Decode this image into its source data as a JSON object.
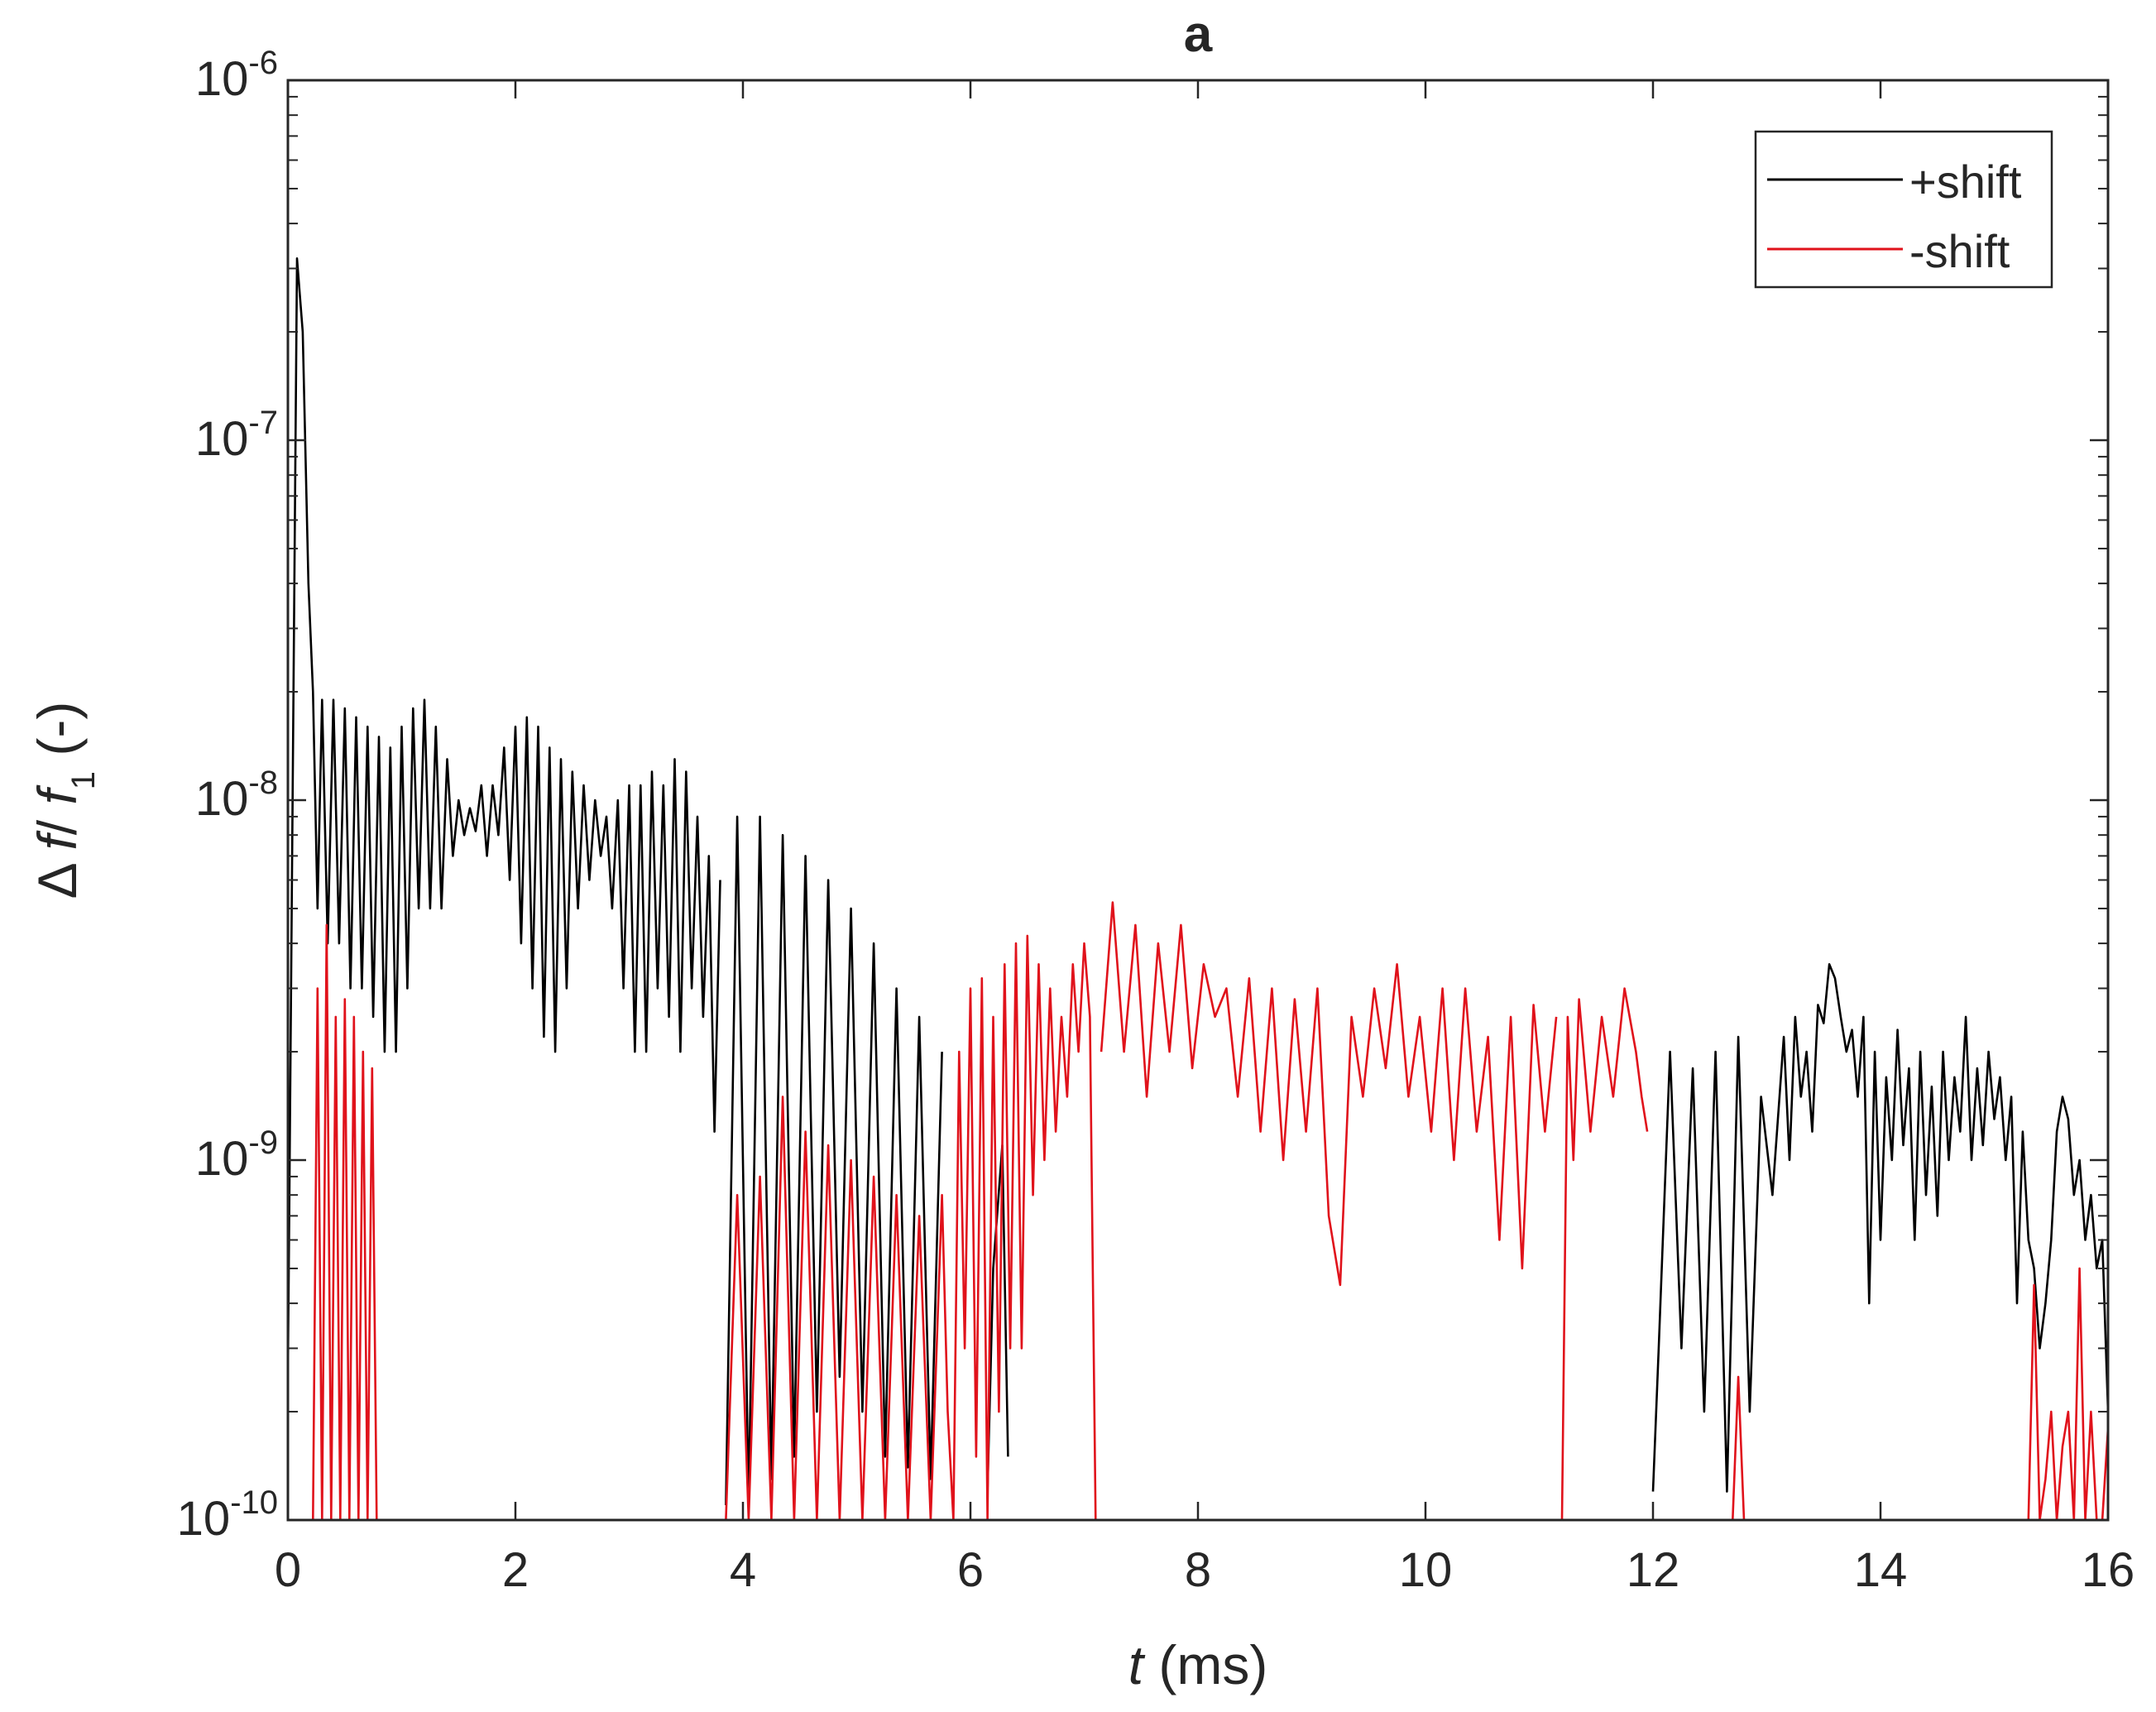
{
  "chart_data": {
    "type": "line",
    "title": "a",
    "xlabel": {
      "var": "t",
      "unit": " (ms)"
    },
    "ylabel": {
      "delta": "Δ",
      "f": "f",
      "slash": "/ ",
      "f1": "f",
      "sub": "1",
      "unit": " (-)"
    },
    "xlim": [
      0,
      16
    ],
    "ylim": [
      1e-10,
      1e-06
    ],
    "yscale": "log",
    "x_ticks": [
      0,
      2,
      4,
      6,
      8,
      10,
      12,
      14,
      16
    ],
    "x_tick_labels": [
      "0",
      "2",
      "4",
      "6",
      "8",
      "10",
      "12",
      "14",
      "16"
    ],
    "y_ticks": [
      1e-10,
      1e-09,
      1e-08,
      1e-07,
      1e-06
    ],
    "y_tick_labels": [
      {
        "base": "10",
        "exp": "-10"
      },
      {
        "base": "10",
        "exp": "-9"
      },
      {
        "base": "10",
        "exp": "-8"
      },
      {
        "base": "10",
        "exp": "-7"
      },
      {
        "base": "10",
        "exp": "-6"
      }
    ],
    "legend": {
      "position": "top-right"
    },
    "series": [
      {
        "name": "+shift",
        "color": "#000000",
        "segments": [
          {
            "x": [
              0.0,
              0.08,
              0.13,
              0.18,
              0.22,
              0.26,
              0.3,
              0.35,
              0.4,
              0.45,
              0.5,
              0.55,
              0.6,
              0.65,
              0.7,
              0.75,
              0.8,
              0.85,
              0.9,
              0.95,
              1.0,
              1.05,
              1.1,
              1.15,
              1.2,
              1.25,
              1.3,
              1.35,
              1.4,
              1.45,
              1.5,
              1.55,
              1.6,
              1.65,
              1.7,
              1.75,
              1.8,
              1.85,
              1.9,
              1.95,
              2.0,
              2.05,
              2.1,
              2.15,
              2.2,
              2.25,
              2.3,
              2.35,
              2.4,
              2.45,
              2.5,
              2.55,
              2.6,
              2.65,
              2.7,
              2.75,
              2.8,
              2.85,
              2.9,
              2.95,
              3.0,
              3.05,
              3.1,
              3.15,
              3.2,
              3.25,
              3.3,
              3.35,
              3.4,
              3.45,
              3.5,
              3.55,
              3.6,
              3.65,
              3.7,
              3.75,
              3.8
            ],
            "y": [
              2.5e-10,
              3.2e-07,
              2e-07,
              4e-08,
              2e-08,
              5e-09,
              1.9e-08,
              4e-09,
              1.9e-08,
              4e-09,
              1.8e-08,
              3e-09,
              1.7e-08,
              3e-09,
              1.6e-08,
              2.5e-09,
              1.5e-08,
              2e-09,
              1.4e-08,
              2e-09,
              1.6e-08,
              3e-09,
              1.8e-08,
              5e-09,
              1.9e-08,
              5e-09,
              1.6e-08,
              5e-09,
              1.3e-08,
              7e-09,
              1e-08,
              8e-09,
              9.5e-09,
              8.2e-09,
              1.1e-08,
              7e-09,
              1.1e-08,
              8e-09,
              1.4e-08,
              6e-09,
              1.6e-08,
              4e-09,
              1.7e-08,
              3e-09,
              1.6e-08,
              2.2e-09,
              1.4e-08,
              2e-09,
              1.3e-08,
              3e-09,
              1.2e-08,
              5e-09,
              1.1e-08,
              6e-09,
              1e-08,
              7e-09,
              9e-09,
              5e-09,
              1e-08,
              3e-09,
              1.1e-08,
              2e-09,
              1.1e-08,
              2e-09,
              1.2e-08,
              3e-09,
              1.1e-08,
              2.5e-09,
              1.3e-08,
              2e-09,
              1.2e-08,
              3e-09,
              9e-09,
              2.5e-09,
              7e-09,
              1.2e-09,
              6e-09
            ]
          },
          {
            "x": [
              3.85,
              3.95,
              4.05,
              4.15,
              4.25,
              4.35,
              4.45,
              4.55,
              4.65,
              4.75,
              4.85,
              4.95,
              5.05,
              5.15,
              5.25,
              5.35,
              5.45,
              5.55,
              5.65,
              5.75
            ],
            "y": [
              1.1e-10,
              9e-09,
              1.1e-10,
              9e-09,
              1.3e-10,
              8e-09,
              1.5e-10,
              7e-09,
              2e-10,
              6e-09,
              2.5e-10,
              5e-09,
              2e-10,
              4e-09,
              1.5e-10,
              3e-09,
              1.4e-10,
              2.5e-09,
              1.3e-10,
              2e-09
            ]
          },
          {
            "x": [
              6.15,
              6.2,
              6.28,
              6.33
            ],
            "y": [
              1.2e-10,
              5e-10,
              1.1e-09,
              1.5e-10
            ]
          },
          {
            "x": [
              12.0,
              12.05,
              12.15,
              12.25,
              12.35,
              12.45,
              12.55,
              12.65,
              12.75,
              12.85,
              12.95,
              13.05,
              13.15,
              13.2,
              13.25,
              13.3,
              13.35,
              13.4,
              13.45,
              13.5,
              13.55,
              13.6,
              13.65,
              13.7,
              13.75,
              13.8,
              13.85,
              13.9,
              13.95,
              14.0,
              14.05,
              14.1,
              14.15,
              14.2,
              14.25,
              14.3,
              14.35,
              14.4,
              14.45,
              14.5,
              14.55,
              14.6,
              14.65,
              14.7,
              14.75,
              14.8,
              14.85,
              14.9,
              14.95,
              15.0,
              15.05,
              15.1,
              15.15,
              15.2,
              15.25,
              15.3,
              15.35,
              15.4,
              15.45,
              15.5,
              15.55,
              15.6,
              15.65,
              15.7,
              15.75,
              15.8,
              15.85,
              15.9,
              15.95,
              16.0
            ],
            "y": [
              1.2e-10,
              3e-10,
              2e-09,
              3e-10,
              1.8e-09,
              2e-10,
              2e-09,
              1.2e-10,
              2.2e-09,
              2e-10,
              1.5e-09,
              8e-10,
              2.2e-09,
              1e-09,
              2.5e-09,
              1.5e-09,
              2e-09,
              1.2e-09,
              2.7e-09,
              2.4e-09,
              3.5e-09,
              3.2e-09,
              2.5e-09,
              2e-09,
              2.3e-09,
              1.5e-09,
              2.5e-09,
              4e-10,
              2e-09,
              6e-10,
              1.7e-09,
              1e-09,
              2.3e-09,
              1.1e-09,
              1.8e-09,
              6e-10,
              2e-09,
              8e-10,
              1.6e-09,
              7e-10,
              2e-09,
              1e-09,
              1.7e-09,
              1.2e-09,
              2.5e-09,
              1e-09,
              1.8e-09,
              1.1e-09,
              2e-09,
              1.3e-09,
              1.7e-09,
              1e-09,
              1.5e-09,
              4e-10,
              1.2e-09,
              6e-10,
              5e-10,
              3e-10,
              4e-10,
              6e-10,
              1.2e-09,
              1.5e-09,
              1.3e-09,
              8e-10,
              1e-09,
              6e-10,
              8e-10,
              5e-10,
              6e-10,
              2e-10
            ]
          }
        ]
      },
      {
        "name": "-shift",
        "color": "#e0121b",
        "segments": [
          {
            "x": [
              0.22,
              0.26,
              0.3,
              0.34,
              0.38,
              0.42,
              0.46,
              0.5,
              0.54,
              0.58,
              0.62,
              0.66,
              0.7,
              0.74,
              0.78,
              0.82,
              0.86,
              0.9,
              0.94,
              0.98,
              1.0
            ],
            "y": [
              1e-10,
              3e-09,
              1e-10,
              4.5e-09,
              1e-10,
              2.5e-09,
              1e-10,
              2.8e-09,
              1e-10,
              2.5e-09,
              1e-10,
              2e-09,
              1e-10,
              1.8e-09,
              1e-10,
              1e-10,
              1e-10,
              1e-10,
              1e-10,
              1e-10,
              1e-10
            ]
          },
          {
            "x": [
              3.85,
              3.95,
              4.05,
              4.15,
              4.25,
              4.35,
              4.45,
              4.55,
              4.65,
              4.75,
              4.85,
              4.95,
              5.05,
              5.15,
              5.25,
              5.35,
              5.45,
              5.55,
              5.65,
              5.75,
              5.8,
              5.85,
              5.9,
              5.95,
              6.0,
              6.05,
              6.1,
              6.15,
              6.2,
              6.25,
              6.3,
              6.35,
              6.4,
              6.45,
              6.5,
              6.55,
              6.6,
              6.65,
              6.7,
              6.75,
              6.8,
              6.85,
              6.9,
              6.95,
              7.0,
              7.05,
              7.1
            ],
            "y": [
              1e-10,
              8e-10,
              1e-10,
              9e-10,
              1e-10,
              1.5e-09,
              1e-10,
              1.2e-09,
              1e-10,
              1.1e-09,
              1e-10,
              1e-09,
              1e-10,
              9e-10,
              1e-10,
              8e-10,
              1e-10,
              7e-10,
              1e-10,
              8e-10,
              2e-10,
              1e-10,
              2e-09,
              3e-10,
              3e-09,
              1.5e-10,
              3.2e-09,
              1e-10,
              2.5e-09,
              2e-10,
              3.5e-09,
              3e-10,
              4e-09,
              3e-10,
              4.2e-09,
              8e-10,
              3.5e-09,
              1e-09,
              3e-09,
              1.2e-09,
              2.5e-09,
              1.5e-09,
              3.5e-09,
              2e-09,
              4e-09,
              2.5e-09,
              1e-10
            ]
          },
          {
            "x": [
              7.15,
              7.25,
              7.35,
              7.45,
              7.55,
              7.65,
              7.75,
              7.85,
              7.95,
              8.05,
              8.15,
              8.25,
              8.35,
              8.45,
              8.55,
              8.65,
              8.75,
              8.85,
              8.95,
              9.05,
              9.15,
              9.25,
              9.35,
              9.45,
              9.55,
              9.65,
              9.75,
              9.85,
              9.95,
              10.05,
              10.15,
              10.25,
              10.35,
              10.45,
              10.55,
              10.65,
              10.75,
              10.85,
              10.95,
              11.05,
              11.15
            ],
            "y": [
              2e-09,
              5.2e-09,
              2e-09,
              4.5e-09,
              1.5e-09,
              4e-09,
              2e-09,
              4.5e-09,
              1.8e-09,
              3.5e-09,
              2.5e-09,
              3e-09,
              1.5e-09,
              3.2e-09,
              1.2e-09,
              3e-09,
              1e-09,
              2.8e-09,
              1.2e-09,
              3e-09,
              7e-10,
              4.5e-10,
              2.5e-09,
              1.5e-09,
              3e-09,
              1.8e-09,
              3.5e-09,
              1.5e-09,
              2.5e-09,
              1.2e-09,
              3e-09,
              1e-09,
              3e-09,
              1.2e-09,
              2.2e-09,
              6e-10,
              2.5e-09,
              5e-10,
              2.7e-09,
              1.2e-09,
              2.5e-09
            ]
          },
          {
            "x": [
              11.2,
              11.25,
              11.3,
              11.35,
              11.45,
              11.55,
              11.65,
              11.75,
              11.85,
              11.9,
              11.95
            ],
            "y": [
              1e-10,
              2.5e-09,
              1e-09,
              2.8e-09,
              1.2e-09,
              2.5e-09,
              1.5e-09,
              3e-09,
              2e-09,
              1.5e-09,
              1.2e-09
            ]
          },
          {
            "x": [
              12.7,
              12.75,
              12.8
            ],
            "y": [
              1e-10,
              2.5e-10,
              1e-10
            ]
          },
          {
            "x": [
              15.3,
              15.35,
              15.4,
              15.45,
              15.5,
              15.55,
              15.6,
              15.65,
              15.7,
              15.75,
              15.8,
              15.85,
              15.9,
              15.95,
              16.0
            ],
            "y": [
              1e-10,
              4.5e-10,
              1e-10,
              1.3e-10,
              2e-10,
              1e-10,
              1.6e-10,
              2e-10,
              1e-10,
              5e-10,
              1e-10,
              2e-10,
              1e-10,
              1e-10,
              1.8e-10
            ]
          }
        ]
      }
    ]
  }
}
